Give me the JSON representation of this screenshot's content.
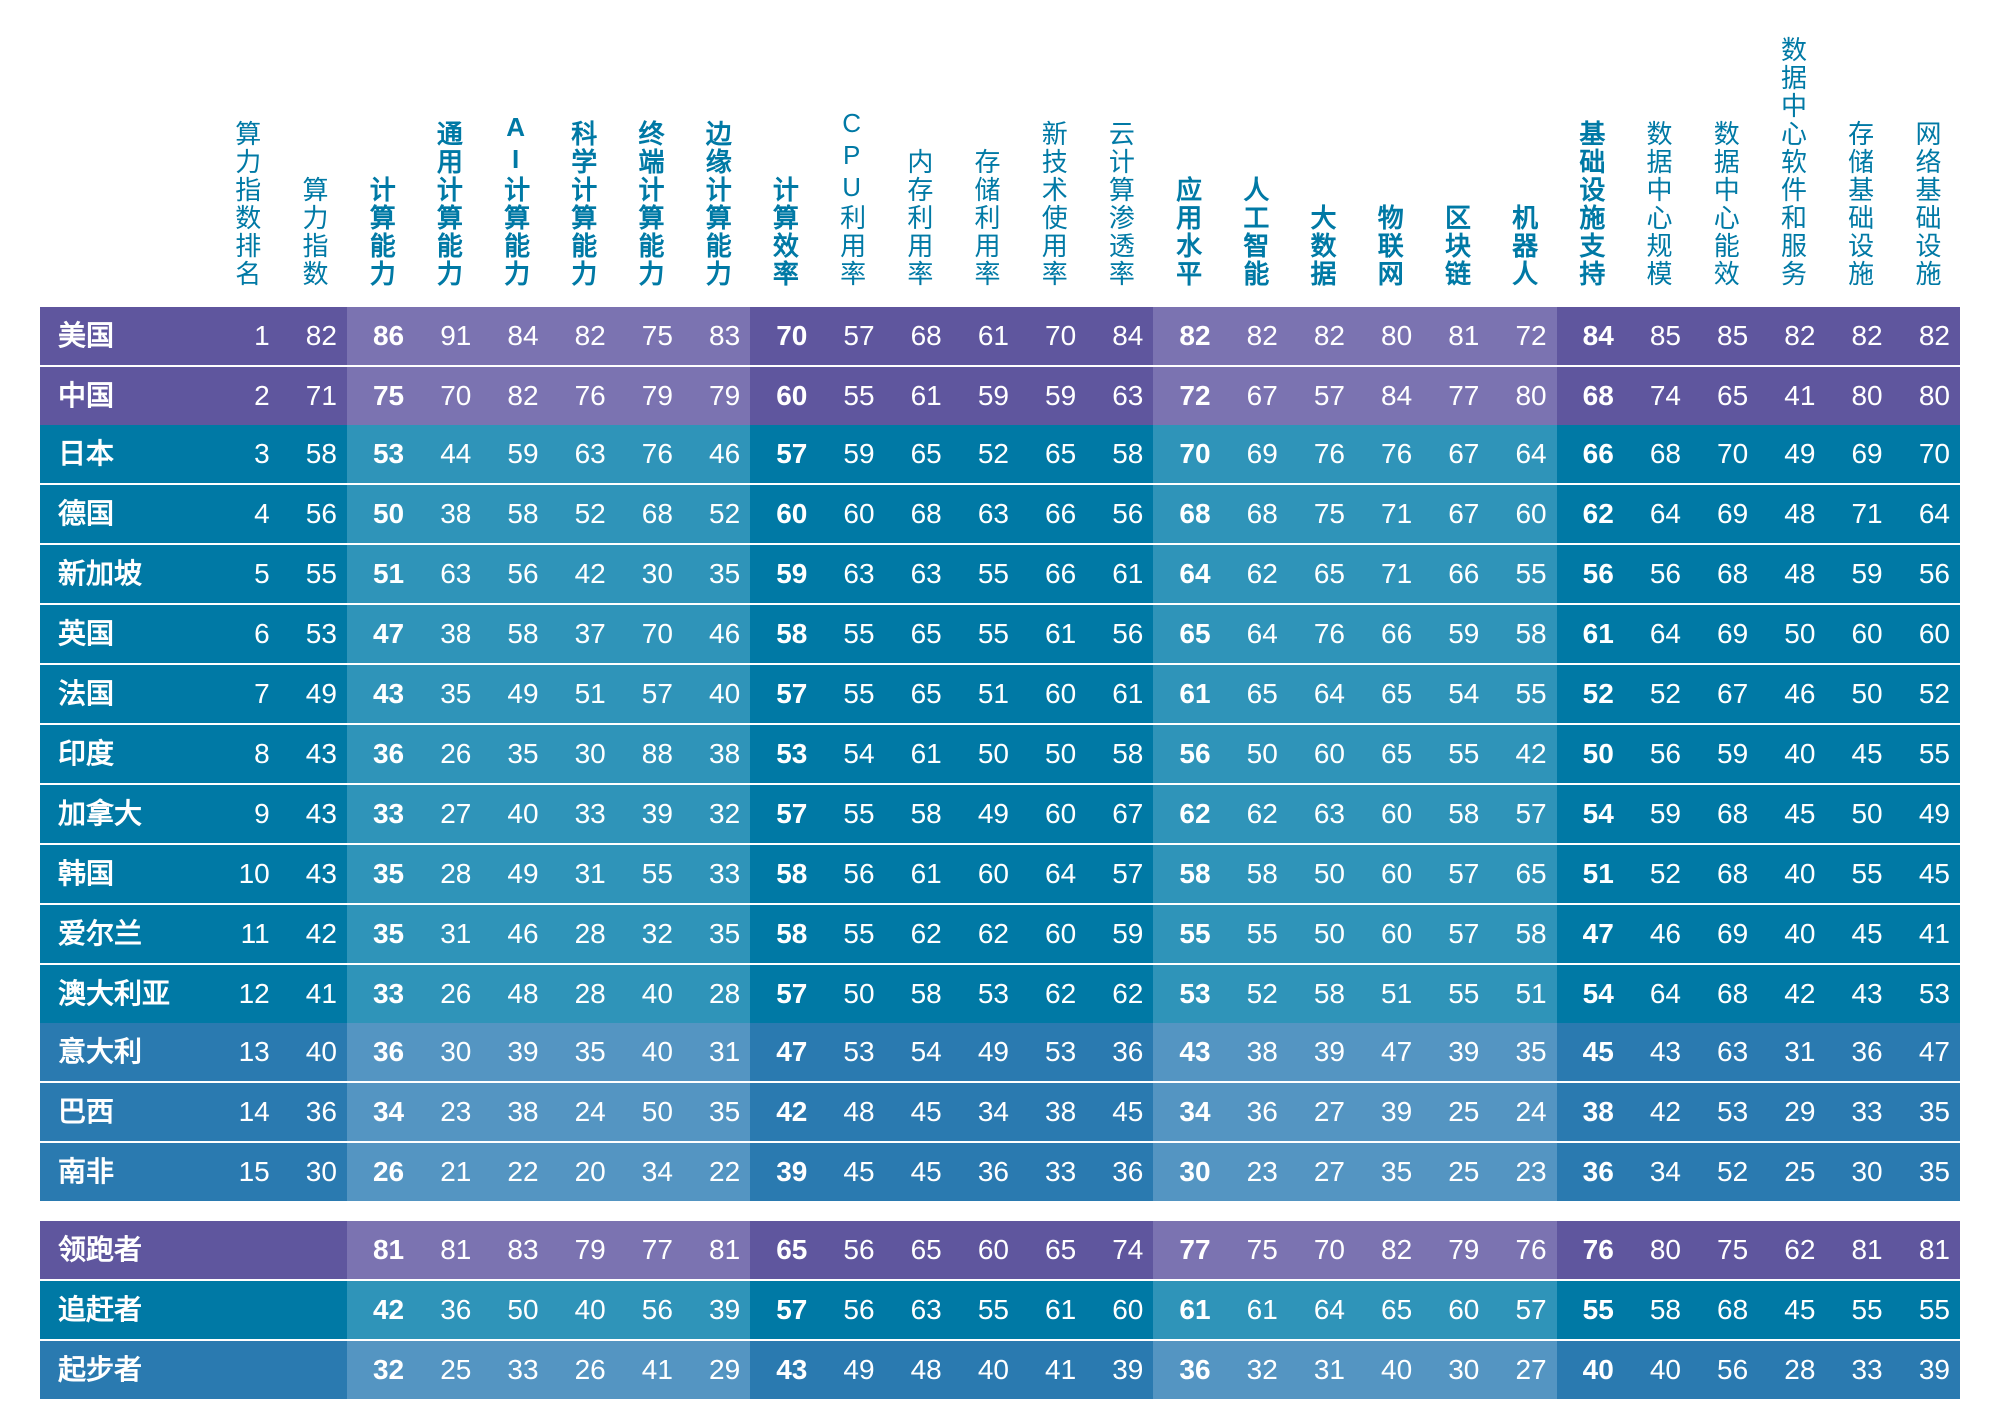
{
  "type": "table",
  "background_color": "#ffffff",
  "header_fontsize": 26,
  "body_fontsize": 28,
  "bold_body_fontsize": 28,
  "band_colors": {
    "purple": "#5f569e",
    "teal": "#0079a5",
    "blue": "#2a7ab0",
    "purple_hi": "#7b73b1",
    "teal_hi": "#2f94b9",
    "blue_hi": "#5495c2"
  },
  "text_color": "#ffffff",
  "header_text_color": "#0079a5",
  "columns": [
    {
      "label": "",
      "key": "country",
      "hi": false
    },
    {
      "label": "算力指数排名",
      "hi": false
    },
    {
      "label": "算力指数",
      "hi": false
    },
    {
      "label": "计算能力",
      "hi": true
    },
    {
      "label": "通用计算能力",
      "hi": true
    },
    {
      "label": "AI计算能力",
      "hi": true
    },
    {
      "label": "科学计算能力",
      "hi": true
    },
    {
      "label": "终端计算能力",
      "hi": true
    },
    {
      "label": "边缘计算能力",
      "hi": true
    },
    {
      "label": "计算效率",
      "hi": false,
      "bold_header": true
    },
    {
      "label": "CPU利用率",
      "hi": false
    },
    {
      "label": "内存利用率",
      "hi": false
    },
    {
      "label": "存储利用率",
      "hi": false
    },
    {
      "label": "新技术使用率",
      "hi": false
    },
    {
      "label": "云计算渗透率",
      "hi": false
    },
    {
      "label": "应用水平",
      "hi": true
    },
    {
      "label": "人工智能",
      "hi": true
    },
    {
      "label": "大数据",
      "hi": true
    },
    {
      "label": "物联网",
      "hi": true
    },
    {
      "label": "区块链",
      "hi": true
    },
    {
      "label": "机器人",
      "hi": true
    },
    {
      "label": "基础设施支持",
      "hi": false,
      "bold_header": true
    },
    {
      "label": "数据中心规模",
      "hi": false
    },
    {
      "label": "数据中心能效",
      "hi": false
    },
    {
      "label": "数据中心软件和服务",
      "hi": false
    },
    {
      "label": "存储基础设施",
      "hi": false
    },
    {
      "label": "网络基础设施",
      "hi": false
    }
  ],
  "bold_value_cols": [
    3,
    9,
    15,
    21
  ],
  "rows": [
    {
      "band": "purple",
      "group_start": true,
      "cells": [
        "美国",
        "1",
        "82",
        "86",
        "91",
        "84",
        "82",
        "75",
        "83",
        "70",
        "57",
        "68",
        "61",
        "70",
        "84",
        "82",
        "82",
        "82",
        "80",
        "81",
        "72",
        "84",
        "85",
        "85",
        "82",
        "82",
        "82"
      ]
    },
    {
      "band": "purple",
      "cells": [
        "中国",
        "2",
        "71",
        "75",
        "70",
        "82",
        "76",
        "79",
        "79",
        "60",
        "55",
        "61",
        "59",
        "59",
        "63",
        "72",
        "67",
        "57",
        "84",
        "77",
        "80",
        "68",
        "74",
        "65",
        "41",
        "80",
        "80"
      ]
    },
    {
      "band": "teal",
      "group_start": true,
      "cells": [
        "日本",
        "3",
        "58",
        "53",
        "44",
        "59",
        "63",
        "76",
        "46",
        "57",
        "59",
        "65",
        "52",
        "65",
        "58",
        "70",
        "69",
        "76",
        "76",
        "67",
        "64",
        "66",
        "68",
        "70",
        "49",
        "69",
        "70"
      ]
    },
    {
      "band": "teal",
      "cells": [
        "德国",
        "4",
        "56",
        "50",
        "38",
        "58",
        "52",
        "68",
        "52",
        "60",
        "60",
        "68",
        "63",
        "66",
        "56",
        "68",
        "68",
        "75",
        "71",
        "67",
        "60",
        "62",
        "64",
        "69",
        "48",
        "71",
        "64"
      ]
    },
    {
      "band": "teal",
      "cells": [
        "新加坡",
        "5",
        "55",
        "51",
        "63",
        "56",
        "42",
        "30",
        "35",
        "59",
        "63",
        "63",
        "55",
        "66",
        "61",
        "64",
        "62",
        "65",
        "71",
        "66",
        "55",
        "56",
        "56",
        "68",
        "48",
        "59",
        "56"
      ]
    },
    {
      "band": "teal",
      "cells": [
        "英国",
        "6",
        "53",
        "47",
        "38",
        "58",
        "37",
        "70",
        "46",
        "58",
        "55",
        "65",
        "55",
        "61",
        "56",
        "65",
        "64",
        "76",
        "66",
        "59",
        "58",
        "61",
        "64",
        "69",
        "50",
        "60",
        "60"
      ]
    },
    {
      "band": "teal",
      "cells": [
        "法国",
        "7",
        "49",
        "43",
        "35",
        "49",
        "51",
        "57",
        "40",
        "57",
        "55",
        "65",
        "51",
        "60",
        "61",
        "61",
        "65",
        "64",
        "65",
        "54",
        "55",
        "52",
        "52",
        "67",
        "46",
        "50",
        "52"
      ]
    },
    {
      "band": "teal",
      "cells": [
        "印度",
        "8",
        "43",
        "36",
        "26",
        "35",
        "30",
        "88",
        "38",
        "53",
        "54",
        "61",
        "50",
        "50",
        "58",
        "56",
        "50",
        "60",
        "65",
        "55",
        "42",
        "50",
        "56",
        "59",
        "40",
        "45",
        "55"
      ]
    },
    {
      "band": "teal",
      "cells": [
        "加拿大",
        "9",
        "43",
        "33",
        "27",
        "40",
        "33",
        "39",
        "32",
        "57",
        "55",
        "58",
        "49",
        "60",
        "67",
        "62",
        "62",
        "63",
        "60",
        "58",
        "57",
        "54",
        "59",
        "68",
        "45",
        "50",
        "49"
      ]
    },
    {
      "band": "teal",
      "cells": [
        "韩国",
        "10",
        "43",
        "35",
        "28",
        "49",
        "31",
        "55",
        "33",
        "58",
        "56",
        "61",
        "60",
        "64",
        "57",
        "58",
        "58",
        "50",
        "60",
        "57",
        "65",
        "51",
        "52",
        "68",
        "40",
        "55",
        "45"
      ]
    },
    {
      "band": "teal",
      "cells": [
        "爱尔兰",
        "11",
        "42",
        "35",
        "31",
        "46",
        "28",
        "32",
        "35",
        "58",
        "55",
        "62",
        "62",
        "60",
        "59",
        "55",
        "55",
        "50",
        "60",
        "57",
        "58",
        "47",
        "46",
        "69",
        "40",
        "45",
        "41"
      ]
    },
    {
      "band": "teal",
      "cells": [
        "澳大利亚",
        "12",
        "41",
        "33",
        "26",
        "48",
        "28",
        "40",
        "28",
        "57",
        "50",
        "58",
        "53",
        "62",
        "62",
        "53",
        "52",
        "58",
        "51",
        "55",
        "51",
        "54",
        "64",
        "68",
        "42",
        "43",
        "53"
      ]
    },
    {
      "band": "blue",
      "group_start": true,
      "cells": [
        "意大利",
        "13",
        "40",
        "36",
        "30",
        "39",
        "35",
        "40",
        "31",
        "47",
        "53",
        "54",
        "49",
        "53",
        "36",
        "43",
        "38",
        "39",
        "47",
        "39",
        "35",
        "45",
        "43",
        "63",
        "31",
        "36",
        "47"
      ]
    },
    {
      "band": "blue",
      "cells": [
        "巴西",
        "14",
        "36",
        "34",
        "23",
        "38",
        "24",
        "50",
        "35",
        "42",
        "48",
        "45",
        "34",
        "38",
        "45",
        "34",
        "36",
        "27",
        "39",
        "25",
        "24",
        "38",
        "42",
        "53",
        "29",
        "33",
        "35"
      ]
    },
    {
      "band": "blue",
      "cells": [
        "南非",
        "15",
        "30",
        "26",
        "21",
        "22",
        "20",
        "34",
        "22",
        "39",
        "45",
        "45",
        "36",
        "33",
        "36",
        "30",
        "23",
        "27",
        "35",
        "25",
        "23",
        "36",
        "34",
        "52",
        "25",
        "30",
        "35"
      ]
    }
  ],
  "summary_rows": [
    {
      "band": "purple",
      "group_start": true,
      "cells": [
        "领跑者",
        "",
        "",
        "81",
        "81",
        "83",
        "79",
        "77",
        "81",
        "65",
        "56",
        "65",
        "60",
        "65",
        "74",
        "77",
        "75",
        "70",
        "82",
        "79",
        "76",
        "76",
        "80",
        "75",
        "62",
        "81",
        "81"
      ]
    },
    {
      "band": "teal",
      "group_start": true,
      "cells": [
        "追赶者",
        "",
        "",
        "42",
        "36",
        "50",
        "40",
        "56",
        "39",
        "57",
        "56",
        "63",
        "55",
        "61",
        "60",
        "61",
        "61",
        "64",
        "65",
        "60",
        "57",
        "55",
        "58",
        "68",
        "45",
        "55",
        "55"
      ]
    },
    {
      "band": "blue",
      "group_start": true,
      "cells": [
        "起步者",
        "",
        "",
        "32",
        "25",
        "33",
        "26",
        "41",
        "29",
        "43",
        "49",
        "48",
        "40",
        "41",
        "39",
        "36",
        "32",
        "31",
        "40",
        "30",
        "27",
        "40",
        "40",
        "56",
        "28",
        "33",
        "39"
      ]
    }
  ]
}
